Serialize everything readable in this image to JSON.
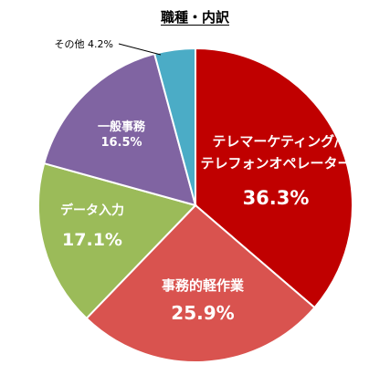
{
  "chart_data": {
    "type": "pie",
    "title": "職種・内訳",
    "start_angle_deg": 0,
    "direction": "clockwise",
    "slices": [
      {
        "label_lines": [
          "テレマーケティング/",
          "テレフォンオペレーター"
        ],
        "value_text": "36.3%",
        "value": 36.3,
        "color": "#c00000",
        "label_color": "#ffffff"
      },
      {
        "label_lines": [
          "事務的軽作業"
        ],
        "value_text": "25.9%",
        "value": 25.9,
        "color": "#d9534f",
        "label_color": "#ffffff"
      },
      {
        "label_lines": [
          "データ入力"
        ],
        "value_text": "17.1%",
        "value": 17.1,
        "color": "#9bbb59",
        "label_color": "#ffffff"
      },
      {
        "label_lines": [
          "一般事務"
        ],
        "value_text": "16.5%",
        "value": 16.5,
        "color": "#8064a2",
        "label_color": "#ffffff"
      },
      {
        "label_lines": [
          "その他"
        ],
        "value_text": "4.2%",
        "value": 4.2,
        "color": "#4bacc6",
        "label_color": "#000000",
        "outside": true
      }
    ]
  }
}
